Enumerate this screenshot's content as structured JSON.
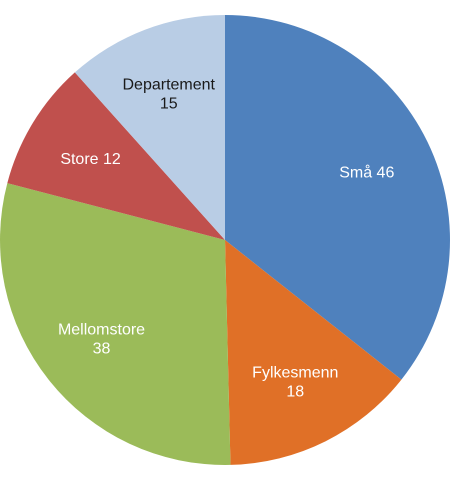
{
  "chart_data": {
    "type": "pie",
    "title": "",
    "slices": [
      {
        "label": "Små",
        "value": 46,
        "color": "#4F81BD",
        "text_color": "#ffffff",
        "label_lines": [
          "Små 46"
        ]
      },
      {
        "label": "Fylkesmenn",
        "value": 18,
        "color": "#E07027",
        "text_color": "#ffffff",
        "label_lines": [
          "Fylkesmenn",
          "18"
        ]
      },
      {
        "label": "Mellomstore",
        "value": 38,
        "color": "#9BBB59",
        "text_color": "#ffffff",
        "label_lines": [
          "Mellomstore",
          "38"
        ]
      },
      {
        "label": "Store",
        "value": 12,
        "color": "#C0504D",
        "text_color": "#ffffff",
        "label_lines": [
          "Store 12"
        ]
      },
      {
        "label": "Departement",
        "value": 15,
        "color": "#B9CDE5",
        "text_color": "#1a1a1a",
        "label_lines": [
          "Departement",
          "15"
        ]
      }
    ],
    "start_angle_deg": 0,
    "direction": "clockwise",
    "legend": "none"
  }
}
